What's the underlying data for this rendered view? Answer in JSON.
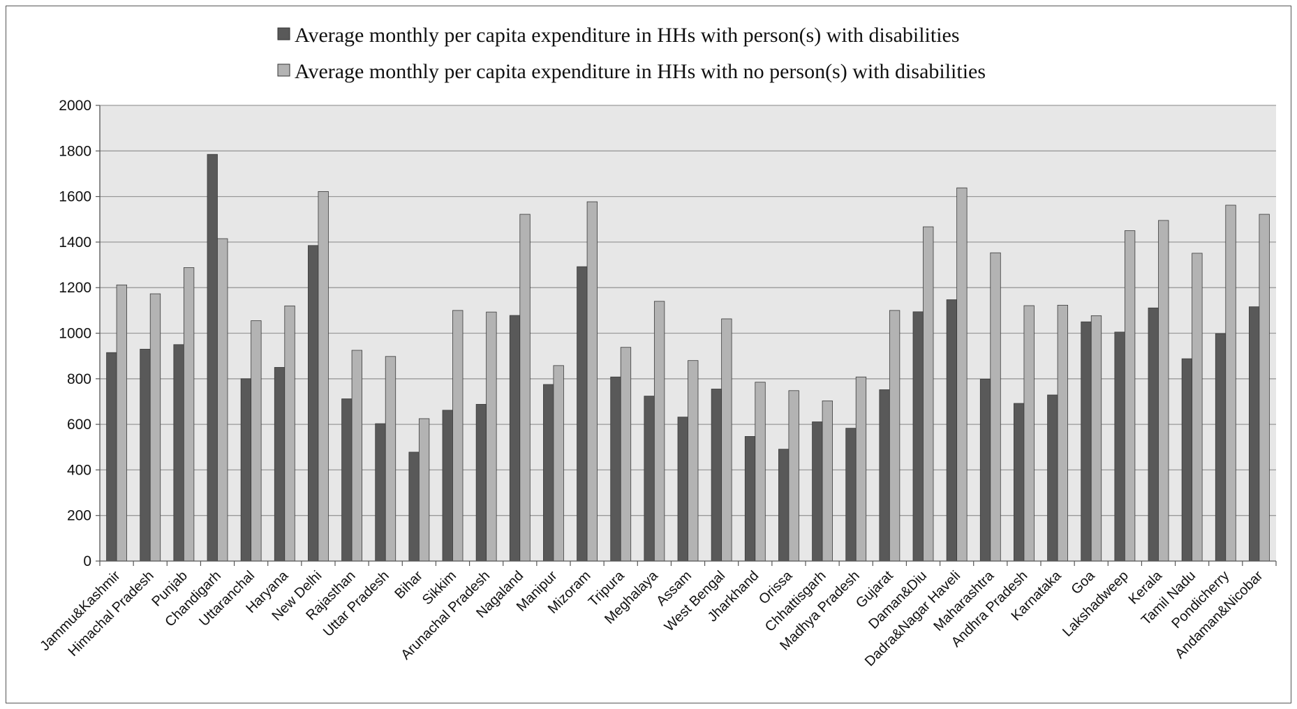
{
  "chart_data": {
    "type": "bar",
    "title": "",
    "xlabel": "",
    "ylabel": "",
    "ylim": [
      0,
      2000
    ],
    "yticks": [
      0,
      200,
      400,
      600,
      800,
      1000,
      1200,
      1400,
      1600,
      1800,
      2000
    ],
    "grid": true,
    "legend_position": "top",
    "categories": [
      "Jammu&Kashmir",
      "Himachal Pradesh",
      "Punjab",
      "Chandigarh",
      "Uttaranchal",
      "Haryana",
      "New Delhi",
      "Rajasthan",
      "Uttar Pradesh",
      "Bihar",
      "Sikkim",
      "Arunachal Pradesh",
      "Nagaland",
      "Manipur",
      "Mizoram",
      "Tripura",
      "Meghalaya",
      "Assam",
      "West Bengal",
      "Jharkhand",
      "Orissa",
      "Chhattisgarh",
      "Madhya Pradesh",
      "Gujarat",
      "Daman&Diu",
      "Dadra&Nagar Haveli",
      "Maharashtra",
      "Andhra Pradesh",
      "Karnataka",
      "Goa",
      "Lakshadweep",
      "Kerala",
      "Tamil Nadu",
      "Pondicherry",
      "Andaman&Nicobar"
    ],
    "series": [
      {
        "name": "Average monthly per capita expenditure in HHs with person(s) with disabilities",
        "color": "#595959",
        "values": [
          915,
          930,
          950,
          1785,
          800,
          850,
          1385,
          712,
          603,
          478,
          662,
          688,
          1078,
          775,
          1292,
          808,
          724,
          632,
          755,
          547,
          491,
          611,
          583,
          752,
          1094,
          1147,
          798,
          692,
          729,
          1050,
          1005,
          1111,
          888,
          998,
          1116
        ]
      },
      {
        "name": "Average monthly per capita expenditure in HHs with no person(s) with disabilities",
        "color": "#b3b3b3",
        "values": [
          1212,
          1173,
          1288,
          1415,
          1055,
          1120,
          1622,
          925,
          898,
          625,
          1100,
          1093,
          1522,
          858,
          1577,
          938,
          1140,
          880,
          1063,
          785,
          748,
          703,
          808,
          1100,
          1467,
          1638,
          1353,
          1121,
          1123,
          1077,
          1450,
          1495,
          1351,
          1562,
          1522
        ]
      }
    ]
  },
  "colors": {
    "plot_background": "#e7e7e7",
    "gridline": "#9a9a9a",
    "axis": "#555555",
    "bar_outline": "#3a3a3a"
  }
}
